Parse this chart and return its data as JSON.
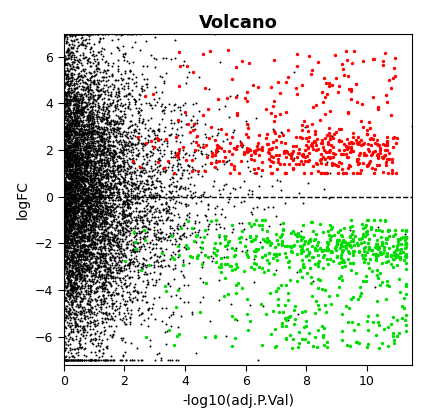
{
  "title": "Volcano",
  "xlabel": "-log10(adj.P.Val)",
  "ylabel": "logFC",
  "xlim": [
    0,
    11.5
  ],
  "ylim": [
    -7.2,
    7
  ],
  "xticks": [
    0,
    2,
    4,
    6,
    8,
    10
  ],
  "yticks": [
    -6,
    -4,
    -2,
    0,
    2,
    4,
    6
  ],
  "dashed_y": 0,
  "n_black": 8000,
  "n_red": 500,
  "n_green": 650,
  "dot_size_black": 2,
  "dot_size_colored": 6,
  "background_color": "#ffffff",
  "black_color": "#000000",
  "red_color": "#ff0000",
  "green_color": "#00dd00",
  "title_fontsize": 13,
  "title_fontweight": "bold",
  "label_fontsize": 10,
  "seed": 99
}
